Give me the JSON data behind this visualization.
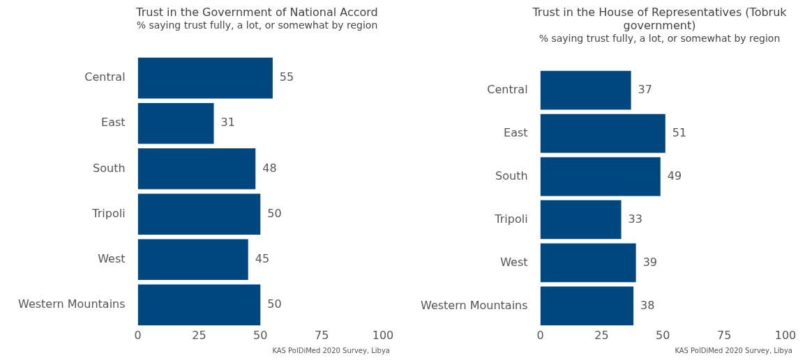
{
  "chart_data": [
    {
      "type": "bar",
      "orientation": "horizontal",
      "title": "Trust in the Government of National Accord",
      "subtitle": "% saying trust fully, a lot, or somewhat by region",
      "categories": [
        "Central",
        "East",
        "South",
        "Tripoli",
        "West",
        "Western Mountains"
      ],
      "values": [
        55,
        31,
        48,
        50,
        45,
        50
      ],
      "color": "#00467f",
      "xlim": [
        0,
        100
      ],
      "xticks": [
        0,
        25,
        50,
        75,
        100
      ],
      "grid": false,
      "data_labels": true,
      "annotations": [
        "KAS PolDiMed 2020 Survey, Libya"
      ]
    },
    {
      "type": "bar",
      "orientation": "horizontal",
      "title": "Trust in the House of Representatives (Tobruk government)",
      "subtitle": "% saying trust fully, a lot, or somewhat by region",
      "categories": [
        "Central",
        "East",
        "South",
        "Tripoli",
        "West",
        "Western Mountains"
      ],
      "values": [
        37,
        51,
        49,
        33,
        39,
        38
      ],
      "color": "#00467f",
      "xlim": [
        0,
        100
      ],
      "xticks": [
        0,
        25,
        50,
        75,
        100
      ],
      "grid": false,
      "data_labels": true,
      "annotations": [
        "KAS PolDiMed 2020 Survey, Libya"
      ]
    }
  ]
}
